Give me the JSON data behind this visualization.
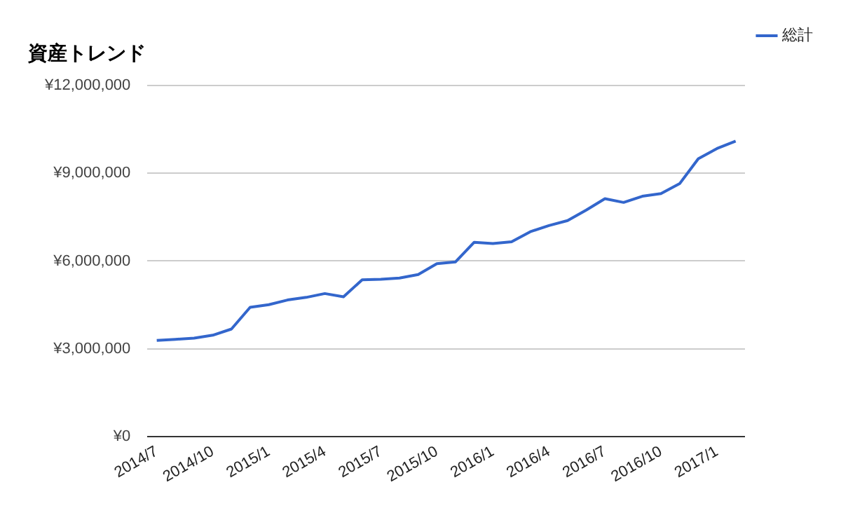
{
  "chart_data": {
    "type": "line",
    "title": "資産トレンド",
    "categories": [
      "2014/7",
      null,
      null,
      "2014/10",
      null,
      null,
      "2015/1",
      null,
      null,
      "2015/4",
      null,
      null,
      "2015/7",
      null,
      null,
      "2015/10",
      null,
      null,
      "2016/1",
      null,
      null,
      "2016/4",
      null,
      null,
      "2016/7",
      null,
      null,
      "2016/10",
      null,
      null,
      "2017/1",
      null
    ],
    "series": [
      {
        "name": "総計",
        "color": "#3366cc",
        "values": [
          3290000,
          3330000,
          3370000,
          3470000,
          3680000,
          4420000,
          4510000,
          4670000,
          4760000,
          4890000,
          4780000,
          5360000,
          5380000,
          5420000,
          5540000,
          5910000,
          5970000,
          6640000,
          6600000,
          6660000,
          7000000,
          7210000,
          7380000,
          7740000,
          8130000,
          8000000,
          8210000,
          8300000,
          8640000,
          9490000,
          9840000,
          10090000
        ]
      }
    ],
    "ylim": [
      0,
      12000000
    ],
    "yticks": [
      {
        "value": 0,
        "label": "¥0"
      },
      {
        "value": 3000000,
        "label": "¥3,000,000"
      },
      {
        "value": 6000000,
        "label": "¥6,000,000"
      },
      {
        "value": 9000000,
        "label": "¥9,000,000"
      },
      {
        "value": 12000000,
        "label": "¥12,000,000"
      }
    ],
    "grid": "y",
    "legend": "top right",
    "marker": "none",
    "line_style": "solid"
  }
}
